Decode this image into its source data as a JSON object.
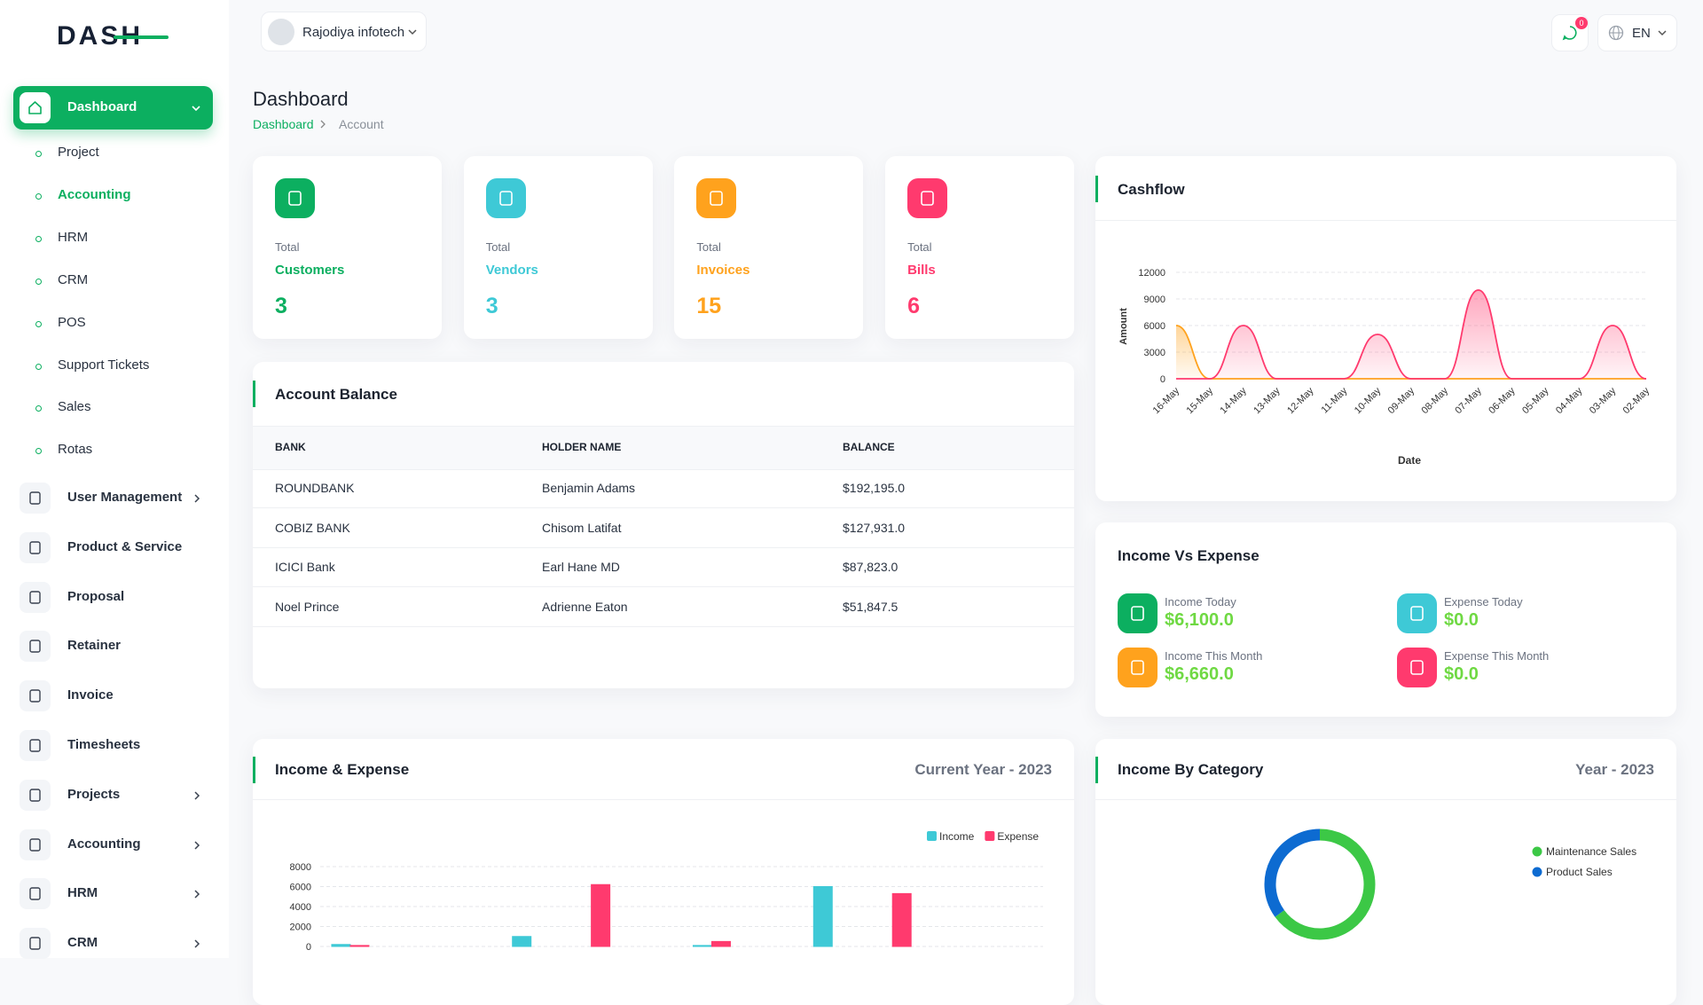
{
  "brand": "DASH",
  "header": {
    "user": "Rajodiya infotech",
    "notifications": 0,
    "language": "EN"
  },
  "sidebar": {
    "main": {
      "label": "Dashboard",
      "children": [
        {
          "label": "Project",
          "active": false
        },
        {
          "label": "Accounting",
          "active": true
        },
        {
          "label": "HRM",
          "active": false
        },
        {
          "label": "CRM",
          "active": false
        },
        {
          "label": "POS",
          "active": false
        },
        {
          "label": "Support Tickets",
          "active": false
        },
        {
          "label": "Sales",
          "active": false
        },
        {
          "label": "Rotas",
          "active": false
        }
      ]
    },
    "items": [
      {
        "label": "User Management",
        "submenu": true
      },
      {
        "label": "Product & Service",
        "submenu": false
      },
      {
        "label": "Proposal",
        "submenu": false
      },
      {
        "label": "Retainer",
        "submenu": false
      },
      {
        "label": "Invoice",
        "submenu": false
      },
      {
        "label": "Timesheets",
        "submenu": false
      },
      {
        "label": "Projects",
        "submenu": true
      },
      {
        "label": "Accounting",
        "submenu": true
      },
      {
        "label": "HRM",
        "submenu": true
      },
      {
        "label": "CRM",
        "submenu": true
      }
    ]
  },
  "page": {
    "title": "Dashboard",
    "breadcrumb": [
      "Dashboard",
      "Account"
    ]
  },
  "stats": [
    {
      "label": "Total",
      "name": "Customers",
      "value": 3,
      "color": "#0caf60"
    },
    {
      "label": "Total",
      "name": "Vendors",
      "value": 3,
      "color": "#3ec9d6"
    },
    {
      "label": "Total",
      "name": "Invoices",
      "value": 15,
      "color": "#ffa21d"
    },
    {
      "label": "Total",
      "name": "Bills",
      "value": 6,
      "color": "#ff3a6e"
    }
  ],
  "account_balance": {
    "title": "Account Balance",
    "columns": [
      "BANK",
      "HOLDER NAME",
      "BALANCE"
    ],
    "rows": [
      [
        "ROUNDBANK",
        "Benjamin Adams",
        "$192,195.0"
      ],
      [
        "COBIZ BANK",
        "Chisom Latifat",
        "$127,931.0"
      ],
      [
        "ICICI Bank",
        "Earl Hane MD",
        "$87,823.0"
      ],
      [
        "Noel Prince",
        "Adrienne Eaton",
        "$51,847.5"
      ]
    ]
  },
  "income_vs_expense": {
    "title": "Income Vs Expense",
    "items": [
      {
        "label": "Income Today",
        "value": "$6,100.0",
        "color": "#0caf60"
      },
      {
        "label": "Expense Today",
        "value": "$0.0",
        "color": "#3ec9d6"
      },
      {
        "label": "Income This Month",
        "value": "$6,660.0",
        "color": "#ffa21d"
      },
      {
        "label": "Expense This Month",
        "value": "$0.0",
        "color": "#ff3a6e"
      }
    ]
  },
  "chart_data": [
    {
      "type": "area",
      "title": "Cashflow",
      "x_label": "Date",
      "y_label": "Amount",
      "categories": [
        "16-May",
        "15-May",
        "14-May",
        "13-May",
        "12-May",
        "11-May",
        "10-May",
        "09-May",
        "08-May",
        "07-May",
        "06-May",
        "05-May",
        "04-May",
        "03-May",
        "02-May"
      ],
      "series": [
        {
          "color": "#ffa21d",
          "values": [
            6000,
            0,
            0,
            0,
            0,
            0,
            0,
            0,
            0,
            0,
            0,
            0,
            0,
            0,
            0
          ]
        },
        {
          "color": "#ff3a6e",
          "values": [
            0,
            0,
            6000,
            0,
            0,
            0,
            5000,
            0,
            0,
            10000,
            0,
            0,
            0,
            6000,
            0
          ]
        }
      ],
      "ylim": [
        0,
        12000
      ],
      "yticks": [
        0,
        3000,
        6000,
        9000,
        12000
      ],
      "grid": true
    },
    {
      "type": "bar",
      "title": "Income & Expense",
      "subtitle": "Current Year - 2023",
      "categories": [
        null,
        null,
        null,
        null,
        null,
        null,
        null,
        null,
        null,
        null,
        null,
        null
      ],
      "series": [
        {
          "name": "Income",
          "color": "#3ec9d6",
          "values": [
            200,
            0,
            0,
            1000,
            0,
            0,
            100,
            0,
            6000,
            0,
            0,
            0
          ]
        },
        {
          "name": "Expense",
          "color": "#ff3a6e",
          "values": [
            100,
            0,
            0,
            0,
            6200,
            0,
            500,
            0,
            0,
            5300,
            0,
            0
          ]
        }
      ],
      "ylim": [
        0,
        8000
      ],
      "yticks": [
        0,
        2000,
        4000,
        6000,
        8000
      ],
      "grid": true,
      "legend": "top-right"
    },
    {
      "type": "donut",
      "title": "Income By Category",
      "subtitle": "Year - 2023",
      "categories": [
        "Maintenance Sales",
        "Product Sales"
      ],
      "values": [
        65,
        35
      ],
      "colors": [
        "#3cc846",
        "#0d6bd1"
      ],
      "legend": "right"
    }
  ]
}
